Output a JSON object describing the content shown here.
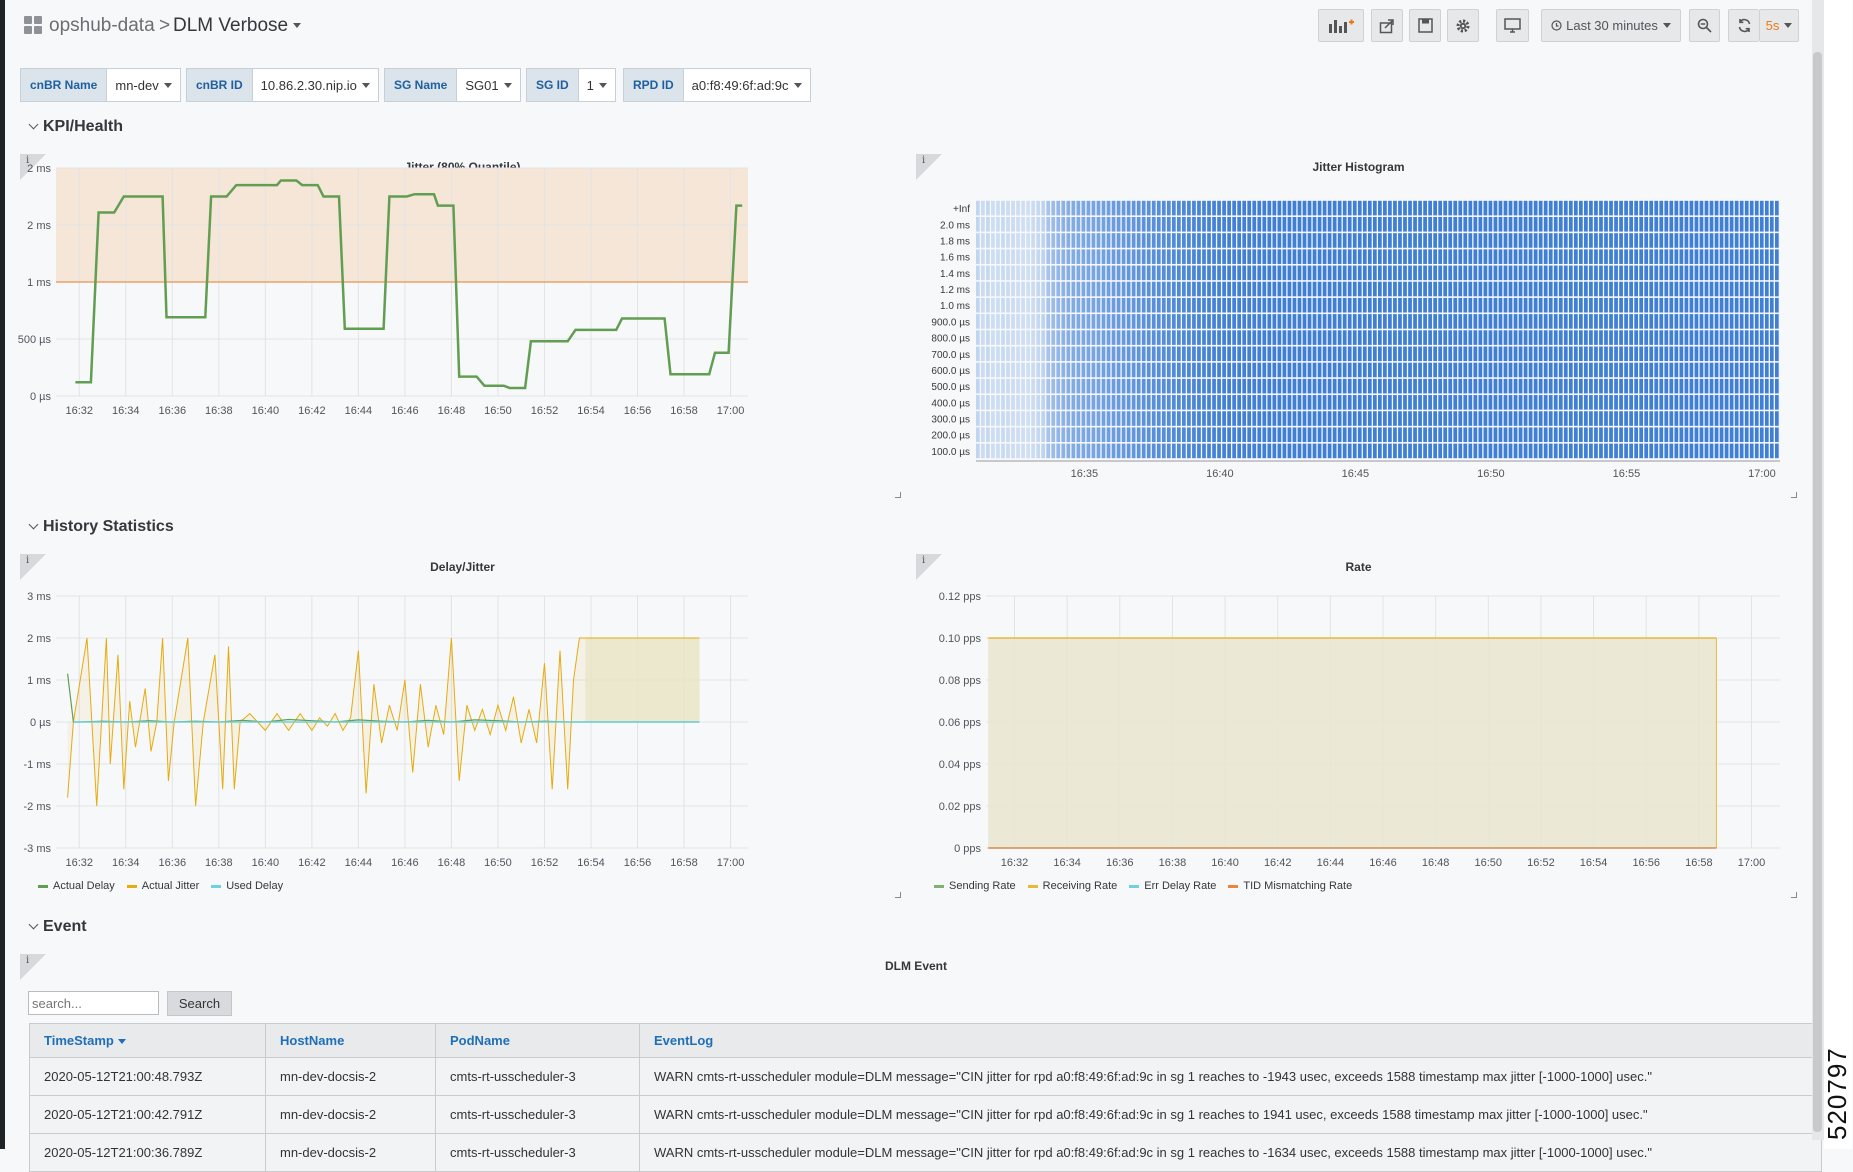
{
  "breadcrumb": {
    "folder": "opshub-data",
    "separator": ">",
    "dashboard": "DLM Verbose"
  },
  "toolbar": {
    "time_range": "Last 30 minutes",
    "refresh_interval": "5s"
  },
  "variables": [
    {
      "label": "cnBR Name",
      "value": "mn-dev"
    },
    {
      "label": "cnBR ID",
      "value": "10.86.2.30.nip.io"
    },
    {
      "label": "SG Name",
      "value": "SG01"
    },
    {
      "label": "SG ID",
      "value": "1"
    },
    {
      "label": "RPD ID",
      "value": "a0:f8:49:6f:ad:9c"
    }
  ],
  "rows": {
    "kpi": "KPI/Health",
    "history": "History Statistics",
    "event": "Event"
  },
  "panels": {
    "jitter": {
      "title": "Jitter (80% Quantile)"
    },
    "histogram": {
      "title": "Jitter Histogram"
    },
    "delay": {
      "title": "Delay/Jitter"
    },
    "rate": {
      "title": "Rate"
    },
    "event": {
      "title": "DLM Event"
    }
  },
  "chart_data": [
    {
      "type": "line",
      "title": "Jitter (80% Quantile)",
      "y_tick_labels": [
        "0 µs",
        "500 µs",
        "1 ms",
        "2 ms",
        "2 ms"
      ],
      "x_tick_labels": [
        "16:32",
        "16:34",
        "16:36",
        "16:38",
        "16:40",
        "16:42",
        "16:44",
        "16:46",
        "16:48",
        "16:50",
        "16:52",
        "16:54",
        "16:56",
        "16:58",
        "17:00"
      ],
      "threshold_ms": 1.0,
      "threshold_color": "#e6a46a",
      "series": [
        {
          "color": "#629e51",
          "x": [
            "16:31:50",
            "16:32:30",
            "16:32:50",
            "16:33:30",
            "16:33:55",
            "16:35:35",
            "16:35:45",
            "16:37:25",
            "16:37:40",
            "16:38:20",
            "16:38:45",
            "16:40:30",
            "16:40:40",
            "16:41:20",
            "16:41:35",
            "16:42:15",
            "16:42:30",
            "16:43:10",
            "16:43:25",
            "16:45:05",
            "16:45:20",
            "16:46:05",
            "16:46:25",
            "16:47:15",
            "16:47:25",
            "16:48:05",
            "16:48:20",
            "16:49:05",
            "16:49:25",
            "16:50:15",
            "16:50:30",
            "16:51:10",
            "16:51:25",
            "16:53:00",
            "16:53:20",
            "16:55:05",
            "16:55:20",
            "16:57:10",
            "16:57:25",
            "16:59:05",
            "16:59:20",
            "16:59:55",
            "17:00:15",
            "17:00:30"
          ],
          "y_ms": [
            0.12,
            0.12,
            1.61,
            1.61,
            1.75,
            1.75,
            0.69,
            0.69,
            1.75,
            1.75,
            1.85,
            1.85,
            1.89,
            1.89,
            1.85,
            1.85,
            1.75,
            1.75,
            0.59,
            0.59,
            1.75,
            1.75,
            1.77,
            1.77,
            1.67,
            1.67,
            0.17,
            0.17,
            0.09,
            0.09,
            0.07,
            0.07,
            0.48,
            0.48,
            0.58,
            0.58,
            0.68,
            0.68,
            0.19,
            0.19,
            0.38,
            0.38,
            1.67,
            1.67
          ]
        }
      ]
    },
    {
      "type": "heatmap",
      "title": "Jitter Histogram",
      "y_tick_labels": [
        "+Inf",
        "2.0 ms",
        "1.8 ms",
        "1.6 ms",
        "1.4 ms",
        "1.2 ms",
        "1.0 ms",
        "900.0 µs",
        "800.0 µs",
        "700.0 µs",
        "600.0 µs",
        "500.0 µs",
        "400.0 µs",
        "300.0 µs",
        "200.0 µs",
        "100.0 µs"
      ],
      "x_tick_labels": [
        "16:35",
        "16:40",
        "16:45",
        "16:50",
        "16:55",
        "17:00"
      ],
      "x_range": [
        "16:31:00",
        "17:00:40"
      ],
      "bucket_columns": 160,
      "colors": {
        "low": "#dde8f6",
        "high": "#3f7fd6"
      },
      "intensity_by_column": [
        0.18,
        0.12,
        0.15,
        0.1,
        0.11,
        0.13,
        0.12,
        0.11,
        0.1,
        0.09,
        0.08,
        0.12,
        0.15,
        0.2,
        0.35,
        0.42,
        0.48,
        0.52,
        0.55,
        0.58,
        0.6,
        0.62,
        0.63,
        0.64,
        0.66,
        0.68,
        0.7,
        0.72,
        0.74,
        0.75,
        0.77,
        0.78,
        0.8,
        0.82,
        0.83,
        0.84,
        0.86,
        0.87,
        0.88,
        0.89,
        0.9,
        0.91,
        0.92,
        0.93,
        0.94,
        0.95,
        0.96,
        0.97,
        0.97,
        0.98,
        0.98,
        0.98,
        0.99,
        0.99,
        0.99,
        0.99,
        0.99,
        1,
        1,
        1,
        1,
        1,
        1,
        1,
        1,
        1,
        1,
        1,
        1,
        1,
        1,
        1,
        1,
        1,
        1,
        1,
        1,
        1,
        1,
        1,
        1,
        1,
        1,
        1,
        1,
        1,
        1,
        1,
        1,
        1,
        1,
        1,
        1,
        1,
        1,
        1,
        1,
        1,
        1,
        1,
        1,
        1,
        1,
        1,
        1,
        1,
        1,
        1,
        1,
        1,
        1,
        1,
        1,
        1,
        1,
        1,
        1,
        1,
        1,
        1,
        1,
        1,
        1,
        1,
        1,
        1,
        1,
        1,
        1,
        1,
        1,
        1,
        1,
        1,
        1,
        1,
        1,
        1,
        1,
        1,
        1,
        1,
        1,
        1,
        1,
        1,
        1,
        1,
        1,
        1,
        1,
        1,
        1,
        1,
        1,
        1,
        1,
        1,
        1,
        1,
        1,
        1,
        1,
        1,
        1,
        1,
        1
      ]
    },
    {
      "type": "line",
      "title": "Delay/Jitter",
      "y_tick_labels": [
        "-3 ms",
        "-2 ms",
        "-1 ms",
        "0 µs",
        "1 ms",
        "2 ms",
        "3 ms"
      ],
      "y_range_ms": [
        -3,
        3
      ],
      "x_tick_labels": [
        "16:32",
        "16:34",
        "16:36",
        "16:38",
        "16:40",
        "16:42",
        "16:44",
        "16:46",
        "16:48",
        "16:50",
        "16:52",
        "16:54",
        "16:56",
        "16:58",
        "17:00"
      ],
      "series": [
        {
          "name": "Actual Delay",
          "color": "#629e51",
          "x": [
            "16:31:30",
            "16:31:45",
            "16:32:00",
            "16:33:00",
            "16:34:00",
            "16:35:00",
            "16:36:00",
            "16:37:00",
            "16:38:00",
            "16:39:00",
            "16:40:00",
            "16:41:00",
            "16:42:00",
            "16:43:00",
            "16:44:00",
            "16:45:00",
            "16:46:00",
            "16:47:00",
            "16:48:00",
            "16:49:00",
            "16:50:00",
            "16:51:00",
            "16:52:00",
            "16:53:00",
            "16:53:45",
            "16:55:00",
            "16:57:00",
            "16:58:40"
          ],
          "y_ms": [
            1.15,
            0,
            0,
            0.02,
            0,
            0.03,
            0,
            0.02,
            0,
            0.04,
            0,
            0.06,
            0.03,
            0,
            0.05,
            0.02,
            0,
            0.04,
            0,
            0.05,
            0.03,
            0,
            0.02,
            0,
            0,
            0,
            0,
            0
          ]
        },
        {
          "name": "Actual Jitter",
          "color": "#e5ac0e",
          "fill_from_x": "16:53:45",
          "x": [
            "16:31:30",
            "16:31:45",
            "16:32:20",
            "16:32:45",
            "16:33:10",
            "16:33:20",
            "16:33:40",
            "16:33:55",
            "16:34:10",
            "16:34:25",
            "16:34:50",
            "16:35:05",
            "16:35:20",
            "16:35:35",
            "16:35:50",
            "16:36:05",
            "16:36:40",
            "16:37:00",
            "16:37:20",
            "16:37:50",
            "16:38:10",
            "16:38:25",
            "16:38:40",
            "16:38:55",
            "16:39:20",
            "16:40:00",
            "16:40:30",
            "16:41:00",
            "16:41:30",
            "16:42:00",
            "16:42:20",
            "16:42:40",
            "16:43:00",
            "16:43:20",
            "16:43:40",
            "16:44:00",
            "16:44:20",
            "16:44:40",
            "16:45:00",
            "16:45:20",
            "16:45:40",
            "16:46:00",
            "16:46:20",
            "16:46:40",
            "16:47:00",
            "16:47:20",
            "16:47:40",
            "16:48:00",
            "16:48:20",
            "16:48:40",
            "16:49:00",
            "16:49:20",
            "16:49:40",
            "16:50:00",
            "16:50:20",
            "16:50:40",
            "16:51:00",
            "16:51:20",
            "16:51:40",
            "16:52:00",
            "16:52:20",
            "16:52:40",
            "16:53:00",
            "16:53:15",
            "16:53:30",
            "16:53:45",
            "16:58:40"
          ],
          "y_ms": [
            -1.8,
            0,
            2.0,
            -2.0,
            2.0,
            -1.0,
            1.6,
            -1.6,
            0.5,
            -0.6,
            0.8,
            -0.7,
            0,
            2.0,
            -1.4,
            0,
            2.0,
            -2.0,
            0,
            1.6,
            -1.6,
            1.8,
            -1.6,
            0,
            0.2,
            -0.2,
            0.2,
            -0.2,
            0.2,
            -0.2,
            0.1,
            -0.1,
            0.2,
            -0.2,
            0.1,
            1.7,
            -1.7,
            0.9,
            -0.5,
            0.4,
            -0.2,
            1.0,
            -1.2,
            0.9,
            -0.6,
            0.4,
            -0.3,
            2.0,
            -1.4,
            0.4,
            -0.2,
            0.3,
            -0.3,
            0.4,
            -0.2,
            0.6,
            -0.5,
            0.3,
            -0.5,
            1.4,
            -1.6,
            1.7,
            -1.6,
            1.0,
            2.0,
            2.0,
            2.0
          ]
        },
        {
          "name": "Used Delay",
          "color": "#6ed0e0",
          "x": [
            "16:31:45",
            "16:58:40"
          ],
          "y_ms": [
            0,
            0
          ]
        }
      ]
    },
    {
      "type": "area",
      "title": "Rate",
      "y_tick_labels": [
        "0 pps",
        "0.02 pps",
        "0.04 pps",
        "0.06 pps",
        "0.08 pps",
        "0.10 pps",
        "0.12 pps"
      ],
      "y_range_pps": [
        0,
        0.12
      ],
      "x_tick_labels": [
        "16:32",
        "16:34",
        "16:36",
        "16:38",
        "16:40",
        "16:42",
        "16:44",
        "16:46",
        "16:48",
        "16:50",
        "16:52",
        "16:54",
        "16:56",
        "16:58",
        "17:00"
      ],
      "series": [
        {
          "name": "Sending Rate",
          "color": "#7eb26d",
          "x": [
            "16:31:00",
            "16:58:40"
          ],
          "y_pps": [
            0,
            0
          ]
        },
        {
          "name": "Receiving Rate",
          "color": "#eab839",
          "x": [
            "16:31:00",
            "16:58:40"
          ],
          "y_pps": [
            0.1,
            0.1
          ]
        },
        {
          "name": "Err Delay Rate",
          "color": "#6ed0e0",
          "x": [
            "16:31:00",
            "16:58:40"
          ],
          "y_pps": [
            0,
            0
          ]
        },
        {
          "name": "TID Mismatching Rate",
          "color": "#ef843c",
          "x": [
            "16:31:00",
            "16:58:40"
          ],
          "y_pps": [
            0,
            0
          ]
        }
      ]
    }
  ],
  "event_search": {
    "placeholder": "search...",
    "button": "Search"
  },
  "event_table": {
    "columns": [
      "TimeStamp",
      "HostName",
      "PodName",
      "EventLog"
    ],
    "rows": [
      [
        "2020-05-12T21:00:48.793Z",
        "mn-dev-docsis-2",
        "cmts-rt-usscheduler-3",
        "WARN cmts-rt-usscheduler module=DLM message=\"CIN jitter for rpd a0:f8:49:6f:ad:9c in sg 1 reaches to -1943 usec, exceeds 1588 timestamp max jitter [-1000-1000] usec.\""
      ],
      [
        "2020-05-12T21:00:42.791Z",
        "mn-dev-docsis-2",
        "cmts-rt-usscheduler-3",
        "WARN cmts-rt-usscheduler module=DLM message=\"CIN jitter for rpd a0:f8:49:6f:ad:9c in sg 1 reaches to 1941 usec, exceeds 1588 timestamp max jitter [-1000-1000] usec.\""
      ],
      [
        "2020-05-12T21:00:36.789Z",
        "mn-dev-docsis-2",
        "cmts-rt-usscheduler-3",
        "WARN cmts-rt-usscheduler module=DLM message=\"CIN jitter for rpd a0:f8:49:6f:ad:9c in sg 1 reaches to -1634 usec, exceeds 1588 timestamp max jitter [-1000-1000] usec.\""
      ]
    ]
  },
  "figure_id": "520797"
}
